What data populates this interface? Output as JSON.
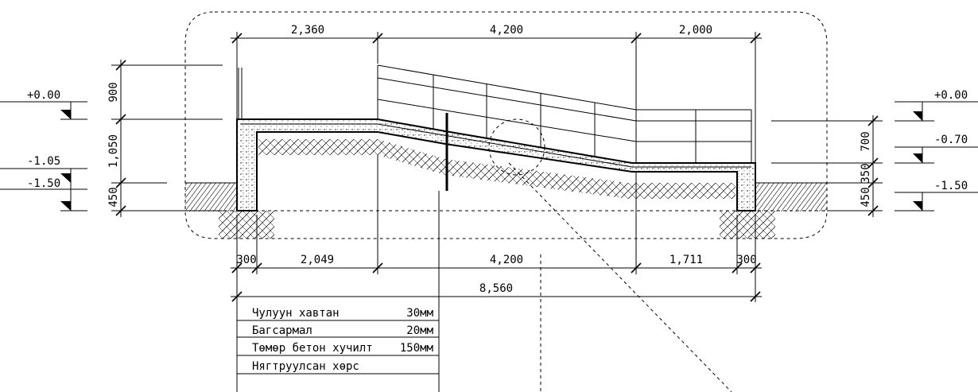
{
  "dimensions": {
    "top": [
      "2,360",
      "4,200",
      "2,000"
    ],
    "bottom": [
      "300",
      "2,049",
      "4,200",
      "1,711",
      "300"
    ],
    "total": "8,560",
    "left_vertical": [
      "900",
      "1,050",
      "450"
    ],
    "right_vertical": [
      "700",
      "350",
      "450"
    ]
  },
  "levels": {
    "left": [
      "+0.00",
      "-1.05",
      "-1.50"
    ],
    "right": [
      "+0.00",
      "-0.70",
      "-1.50"
    ]
  },
  "layers": [
    {
      "name": "Чулуун хавтан",
      "thickness": "30мм"
    },
    {
      "name": "Багсармал",
      "thickness": "20мм"
    },
    {
      "name": "Төмөр бетон хучилт",
      "thickness": "150мм"
    },
    {
      "name": "Нягтруулсан хөрс",
      "thickness": ""
    }
  ]
}
